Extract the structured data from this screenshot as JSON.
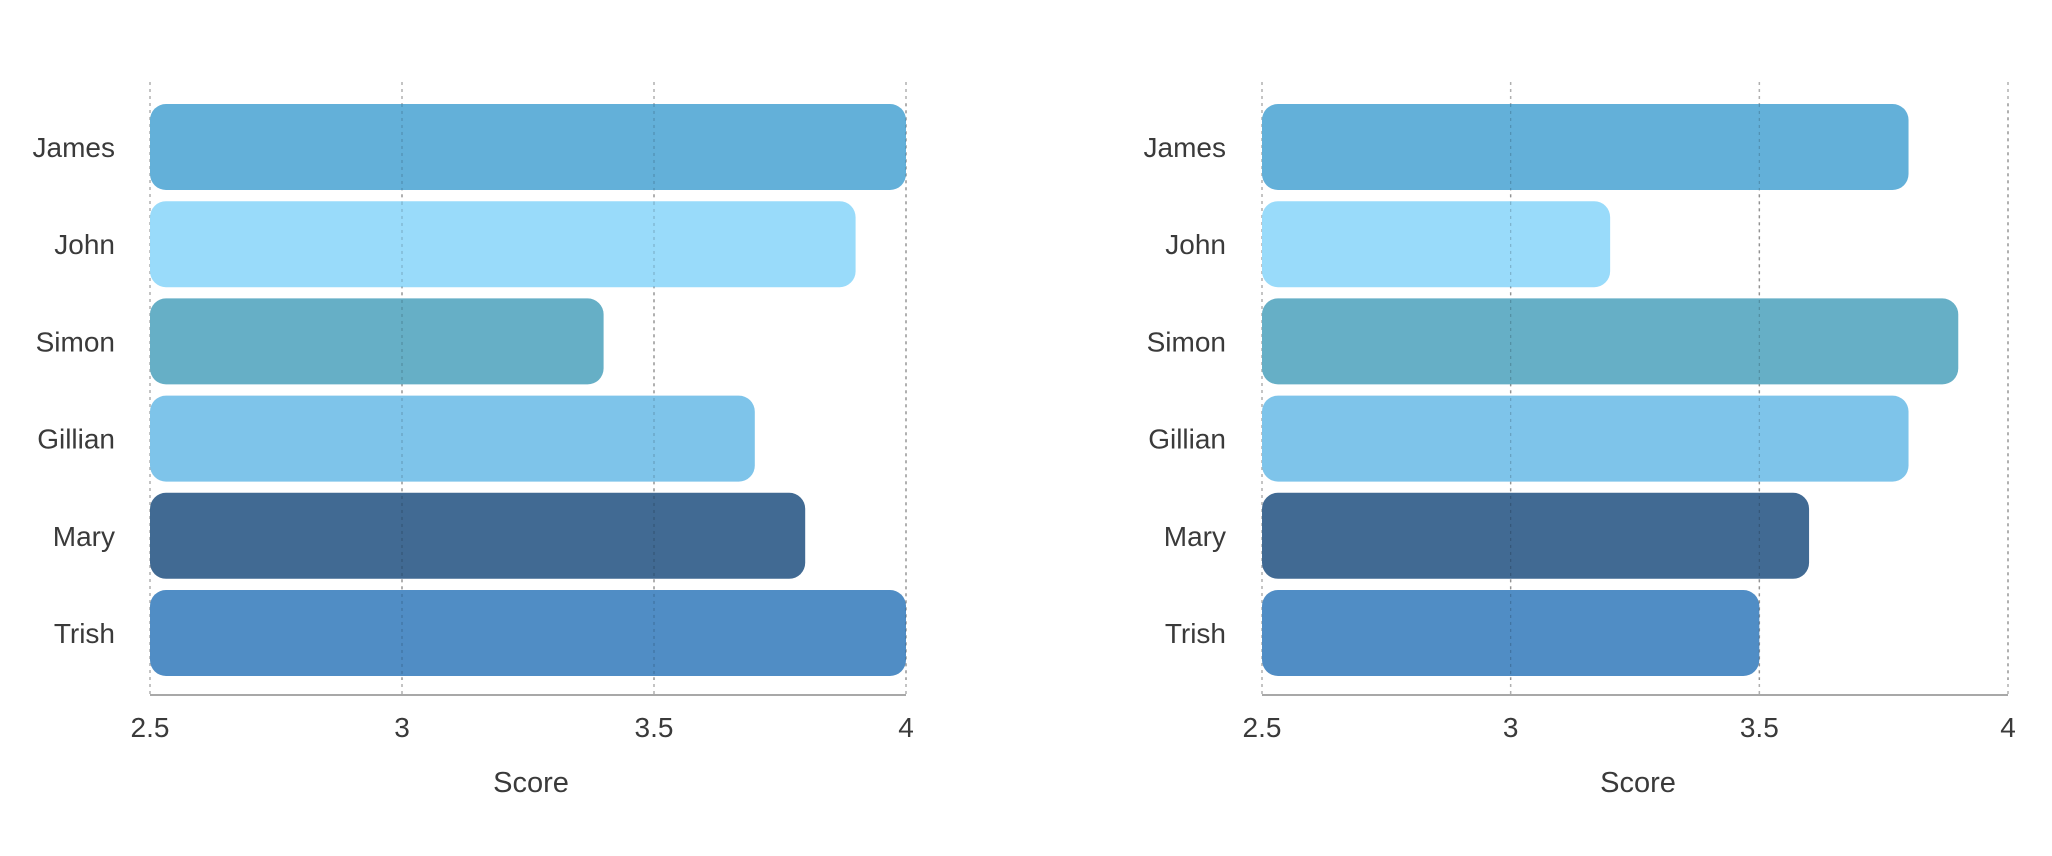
{
  "chart_data": [
    {
      "type": "bar",
      "orientation": "horizontal",
      "categories": [
        "James",
        "John",
        "Simon",
        "Gillian",
        "Mary",
        "Trish"
      ],
      "values": [
        4.0,
        3.9,
        3.4,
        3.7,
        3.8,
        4.0
      ],
      "colors": [
        "#60aed8",
        "#97dafa",
        "#63adc5",
        "#7bc3ea",
        "#3d6791",
        "#4d8bc4"
      ],
      "xlabel": "Score",
      "xlim": [
        2.5,
        4
      ],
      "xticks": [
        "2.5",
        "3",
        "3.5",
        "4"
      ],
      "grid": "vertical dotted",
      "legend": "none"
    },
    {
      "type": "bar",
      "orientation": "horizontal",
      "categories": [
        "James",
        "John",
        "Simon",
        "Gillian",
        "Mary",
        "Trish"
      ],
      "values": [
        3.8,
        3.2,
        3.9,
        3.8,
        3.6,
        3.5
      ],
      "colors": [
        "#60aed8",
        "#97dafa",
        "#63adc5",
        "#7bc3ea",
        "#3d6791",
        "#4d8bc4"
      ],
      "xlabel": "Score",
      "xlim": [
        2.5,
        4
      ],
      "xticks": [
        "2.5",
        "3",
        "3.5",
        "4"
      ],
      "grid": "vertical dotted",
      "legend": "none"
    }
  ]
}
